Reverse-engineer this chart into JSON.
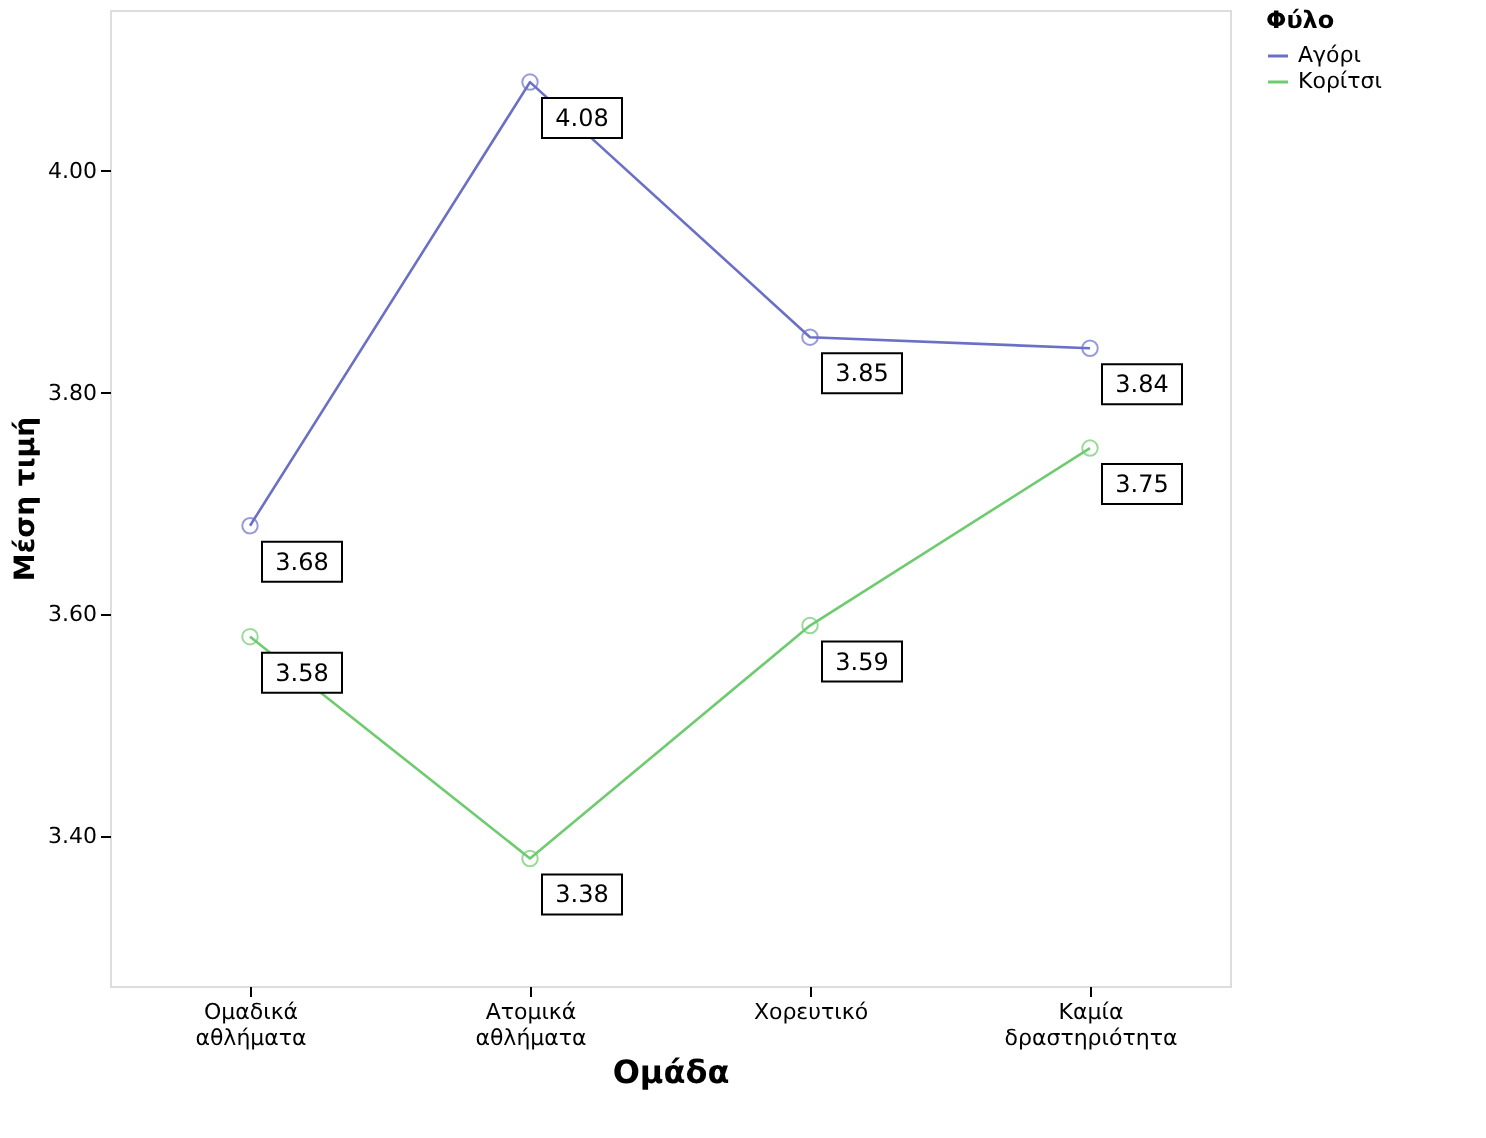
{
  "chart_data": {
    "type": "line",
    "xlabel": "Ομάδα",
    "ylabel": "Μέση τιμή",
    "legend_title": "Φύλο",
    "categories": [
      "Ομαδικά αθλήματα",
      "Ατομικά αθλήματα",
      "Χορευτικό",
      "Καμία δραστηριότητα"
    ],
    "series": [
      {
        "name": "Αγόρι",
        "color": "#6b70c6",
        "values": [
          3.68,
          4.08,
          3.85,
          3.84
        ]
      },
      {
        "name": "Κορίτσι",
        "color": "#6fcb6f",
        "values": [
          3.58,
          3.38,
          3.59,
          3.75
        ]
      }
    ],
    "ylim": [
      3.265,
      4.145
    ],
    "yticks": [
      {
        "value": 3.4,
        "label": "3.40"
      },
      {
        "value": 3.6,
        "label": "3.60"
      },
      {
        "value": 3.8,
        "label": "3.80"
      },
      {
        "value": 4.0,
        "label": "4.00"
      }
    ],
    "data_labels": true,
    "marker": "circle",
    "line_style": "solid",
    "grid": false,
    "legend": "top right"
  }
}
